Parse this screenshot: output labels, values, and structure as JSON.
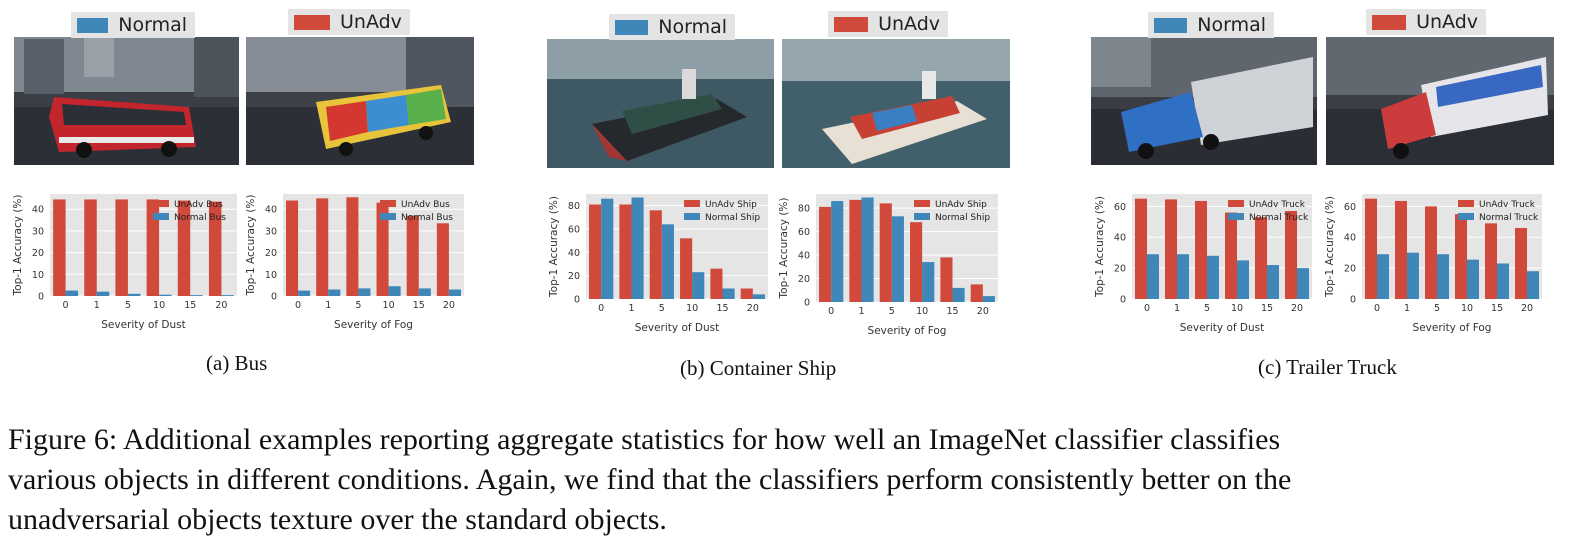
{
  "colors": {
    "unadv": "#d1493a",
    "normal": "#3e87b8",
    "plot_bg": "#e5e5e5",
    "grid": "#ffffff"
  },
  "panels": [
    {
      "id": "bus",
      "subcaption": "(a) Bus",
      "images": [
        {
          "badge": "Normal",
          "color": "#3e87b8"
        },
        {
          "badge": "UnAdv",
          "color": "#d1493a"
        }
      ],
      "charts": [
        {
          "xlabel": "Severity of Dust",
          "ylabel": "Top-1 Accuracy (%)",
          "legend": [
            "UnAdv Bus",
            "Normal Bus"
          ],
          "ylim": [
            0,
            47
          ],
          "yticks": [
            0,
            10,
            20,
            30,
            40
          ]
        },
        {
          "xlabel": "Severity of Fog",
          "ylabel": "Top-1 Accuracy (%)",
          "legend": [
            "UnAdv Bus",
            "Normal Bus"
          ],
          "ylim": [
            0,
            47
          ],
          "yticks": [
            0,
            10,
            20,
            30,
            40
          ]
        }
      ]
    },
    {
      "id": "ship",
      "subcaption": "(b) Container Ship",
      "images": [
        {
          "badge": "Normal",
          "color": "#3e87b8"
        },
        {
          "badge": "UnAdv",
          "color": "#d1493a"
        }
      ],
      "charts": [
        {
          "xlabel": "Severity of Dust",
          "ylabel": "Top-1 Accuracy (%)",
          "legend": [
            "UnAdv Ship",
            "Normal Ship"
          ],
          "ylim": [
            0,
            90
          ],
          "yticks": [
            0,
            20,
            40,
            60,
            80
          ]
        },
        {
          "xlabel": "Severity of Fog",
          "ylabel": "Top-1 Accuracy (%)",
          "legend": [
            "UnAdv Ship",
            "Normal Ship"
          ],
          "ylim": [
            0,
            92
          ],
          "yticks": [
            0,
            20,
            40,
            60,
            80
          ]
        }
      ]
    },
    {
      "id": "truck",
      "subcaption": "(c) Trailer Truck",
      "images": [
        {
          "badge": "Normal",
          "color": "#3e87b8"
        },
        {
          "badge": "UnAdv",
          "color": "#d1493a"
        }
      ],
      "charts": [
        {
          "xlabel": "Severity of Dust",
          "ylabel": "Top-1 Accuracy (%)",
          "legend": [
            "UnAdv Truck",
            "Normal Truck"
          ],
          "ylim": [
            0,
            68
          ],
          "yticks": [
            0,
            20,
            40,
            60
          ]
        },
        {
          "xlabel": "Severity of Fog",
          "ylabel": "Top-1 Accuracy (%)",
          "legend": [
            "UnAdv Truck",
            "Normal Truck"
          ],
          "ylim": [
            0,
            68
          ],
          "yticks": [
            0,
            20,
            40,
            60
          ]
        }
      ]
    }
  ],
  "caption": {
    "line1": "Figure 6: Additional examples reporting aggregate statistics for how well an ImageNet classifier classifies",
    "line2": "various objects in different conditions. Again, we find that the classifiers perform consistently better on the",
    "line3": "unadversarial objects texture over the standard objects."
  },
  "chart_data": [
    {
      "type": "bar",
      "title": "",
      "xlabel": "Severity of Dust",
      "ylabel": "Top-1 Accuracy (%)",
      "categories": [
        "0",
        "1",
        "5",
        "10",
        "15",
        "20"
      ],
      "ylim": [
        0,
        47
      ],
      "grid": true,
      "legend_position": "top-right",
      "series": [
        {
          "name": "UnAdv Bus",
          "values": [
            44.5,
            44.5,
            44.5,
            44.5,
            44,
            43.5
          ]
        },
        {
          "name": "Normal Bus",
          "values": [
            2.5,
            2,
            1,
            0.6,
            0.4,
            0.4
          ]
        }
      ]
    },
    {
      "type": "bar",
      "title": "",
      "xlabel": "Severity of Fog",
      "ylabel": "Top-1 Accuracy (%)",
      "categories": [
        "0",
        "1",
        "5",
        "10",
        "15",
        "20"
      ],
      "ylim": [
        0,
        47
      ],
      "grid": true,
      "legend_position": "top-right",
      "series": [
        {
          "name": "UnAdv Bus",
          "values": [
            44,
            45,
            45.5,
            43,
            37,
            33.5
          ]
        },
        {
          "name": "Normal Bus",
          "values": [
            2.5,
            3,
            3.5,
            4.5,
            3.5,
            3
          ]
        }
      ]
    },
    {
      "type": "bar",
      "title": "",
      "xlabel": "Severity of Dust",
      "ylabel": "Top-1 Accuracy (%)",
      "categories": [
        "0",
        "1",
        "5",
        "10",
        "15",
        "20"
      ],
      "ylim": [
        0,
        90
      ],
      "grid": true,
      "legend_position": "top-right",
      "series": [
        {
          "name": "UnAdv Ship",
          "values": [
            81,
            81,
            76,
            52,
            26,
            9
          ]
        },
        {
          "name": "Normal Ship",
          "values": [
            86,
            87,
            64,
            23,
            9,
            4
          ]
        }
      ]
    },
    {
      "type": "bar",
      "title": "",
      "xlabel": "Severity of Fog",
      "ylabel": "Top-1 Accuracy (%)",
      "categories": [
        "0",
        "1",
        "5",
        "10",
        "15",
        "20"
      ],
      "ylim": [
        0,
        92
      ],
      "grid": true,
      "legend_position": "top-right",
      "series": [
        {
          "name": "UnAdv Ship",
          "values": [
            81,
            87,
            84,
            68,
            38,
            15
          ]
        },
        {
          "name": "Normal Ship",
          "values": [
            86,
            89,
            73,
            34,
            12,
            5
          ]
        }
      ]
    },
    {
      "type": "bar",
      "title": "",
      "xlabel": "Severity of Dust",
      "ylabel": "Top-1 Accuracy (%)",
      "categories": [
        "0",
        "1",
        "5",
        "10",
        "15",
        "20"
      ],
      "ylim": [
        0,
        68
      ],
      "grid": true,
      "legend_position": "top-right",
      "series": [
        {
          "name": "UnAdv Truck",
          "values": [
            65,
            64.5,
            63.5,
            56,
            53,
            57
          ]
        },
        {
          "name": "Normal Truck",
          "values": [
            29,
            29,
            28,
            25,
            22,
            20
          ]
        }
      ]
    },
    {
      "type": "bar",
      "title": "",
      "xlabel": "Severity of Fog",
      "ylabel": "Top-1 Accuracy (%)",
      "categories": [
        "0",
        "1",
        "5",
        "10",
        "15",
        "20"
      ],
      "ylim": [
        0,
        68
      ],
      "grid": true,
      "legend_position": "top-right",
      "series": [
        {
          "name": "UnAdv Truck",
          "values": [
            65,
            63.5,
            60,
            55,
            49,
            46
          ]
        },
        {
          "name": "Normal Truck",
          "values": [
            29,
            30,
            29,
            25.5,
            23,
            18
          ]
        }
      ]
    }
  ]
}
